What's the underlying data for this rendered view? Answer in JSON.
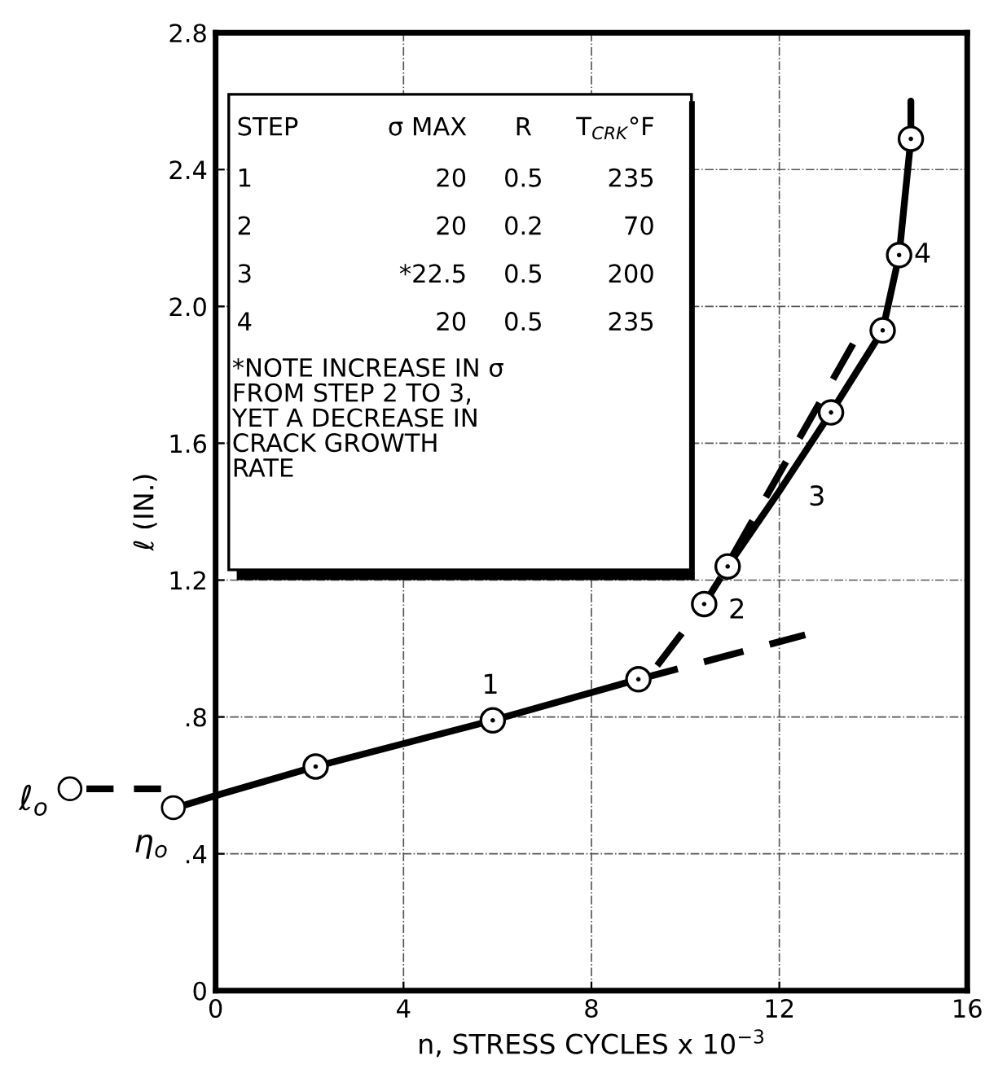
{
  "chart_data": {
    "type": "line",
    "xlabel": "n, STRESS CYCLES x 10$^{−3}$",
    "ylabel": "ℓ (IN.)",
    "xlim": [
      0,
      16
    ],
    "xticks": [
      0,
      4,
      8,
      12,
      16
    ],
    "ylim": [
      0,
      2.8
    ],
    "yticks": [
      0,
      {
        "value": 0.4,
        "label": ".4"
      },
      {
        "value": 0.8,
        "label": ".8"
      },
      1.2,
      1.6,
      {
        "value": 2.0,
        "label": "2.0"
      },
      2.4,
      2.8
    ],
    "grid": true,
    "series": [
      {
        "line_style": "solid",
        "color": "#000000",
        "x": [
          0,
          2.13,
          5.9,
          9.0
        ],
        "values": [
          0.57,
          0.655,
          0.79,
          0.91
        ]
      },
      {
        "line_style": "dashed",
        "color": "#000000",
        "x": [
          9.0,
          12.55
        ],
        "values": [
          0.91,
          1.04
        ]
      },
      {
        "line_style": "dashed",
        "color": "#000000",
        "x": [
          9.4,
          10.4,
          10.9
        ],
        "values": [
          0.95,
          1.13,
          1.24
        ]
      },
      {
        "line_style": "dashed",
        "color": "#000000",
        "x": [
          11.0,
          13.65
        ],
        "values": [
          1.27,
          1.91
        ]
      },
      {
        "line_style": "solid",
        "color": "#000000",
        "x": [
          10.9,
          12.0,
          13.1,
          14.2,
          14.55,
          14.8,
          14.8
        ],
        "values": [
          1.24,
          1.46,
          1.69,
          1.93,
          2.15,
          2.49,
          2.6
        ]
      },
      {
        "type": "scatter",
        "color": "#000000",
        "marker": "circle",
        "x": [
          2.13,
          5.9,
          9.0,
          10.4,
          10.9,
          13.1,
          14.2,
          14.55,
          14.8
        ],
        "values": [
          0.655,
          0.79,
          0.91,
          1.13,
          1.24,
          1.69,
          1.93,
          2.15,
          2.49
        ]
      }
    ],
    "annotations": [
      "STEP",
      "σ MAX",
      "R",
      "T$_{CRK}$°F",
      "1",
      "20",
      "0.5",
      "235",
      "2",
      "20",
      "0.2",
      "70",
      "3",
      "*22.5",
      "0.5",
      "200",
      "4",
      "20",
      "0.5",
      "235",
      "*NOTE INCREASE IN σ\nFROM STEP 2 TO 3,\nYET A DECREASE IN\nCRACK GROWTH\nRATE",
      "ℓ$_{o}$",
      "η$_{o}$",
      "1",
      "2",
      "3",
      "4"
    ]
  }
}
